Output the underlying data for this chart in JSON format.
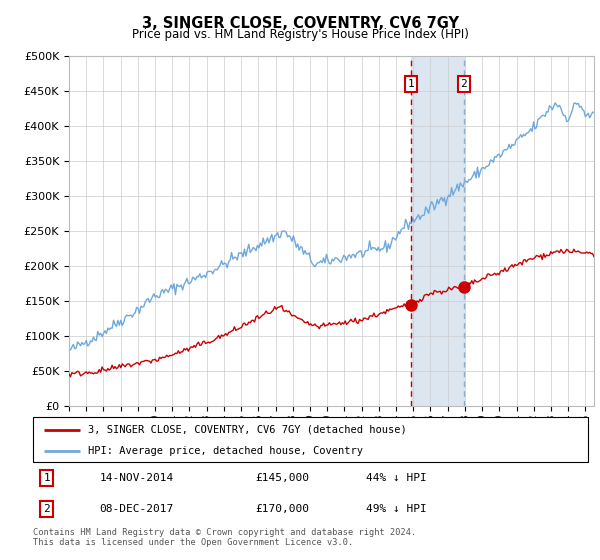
{
  "title": "3, SINGER CLOSE, COVENTRY, CV6 7GY",
  "subtitle": "Price paid vs. HM Land Registry's House Price Index (HPI)",
  "footer": "Contains HM Land Registry data © Crown copyright and database right 2024.\nThis data is licensed under the Open Government Licence v3.0.",
  "legend_line1": "3, SINGER CLOSE, COVENTRY, CV6 7GY (detached house)",
  "legend_line2": "HPI: Average price, detached house, Coventry",
  "transaction1_date": "14-NOV-2014",
  "transaction1_price": "£145,000",
  "transaction1_hpi": "44% ↓ HPI",
  "transaction2_date": "08-DEC-2017",
  "transaction2_price": "£170,000",
  "transaction2_hpi": "49% ↓ HPI",
  "hpi_color": "#6fa8dc",
  "price_color": "#cc0000",
  "highlight_color": "#dce6f1",
  "transaction1_x": 2014.87,
  "transaction2_x": 2017.93,
  "transaction1_y": 145000,
  "transaction2_y": 170000,
  "vline1_color": "#cc0000",
  "vline2_color": "#8eaacc",
  "ylim": [
    0,
    500000
  ],
  "xlim": [
    1995.0,
    2025.5
  ]
}
